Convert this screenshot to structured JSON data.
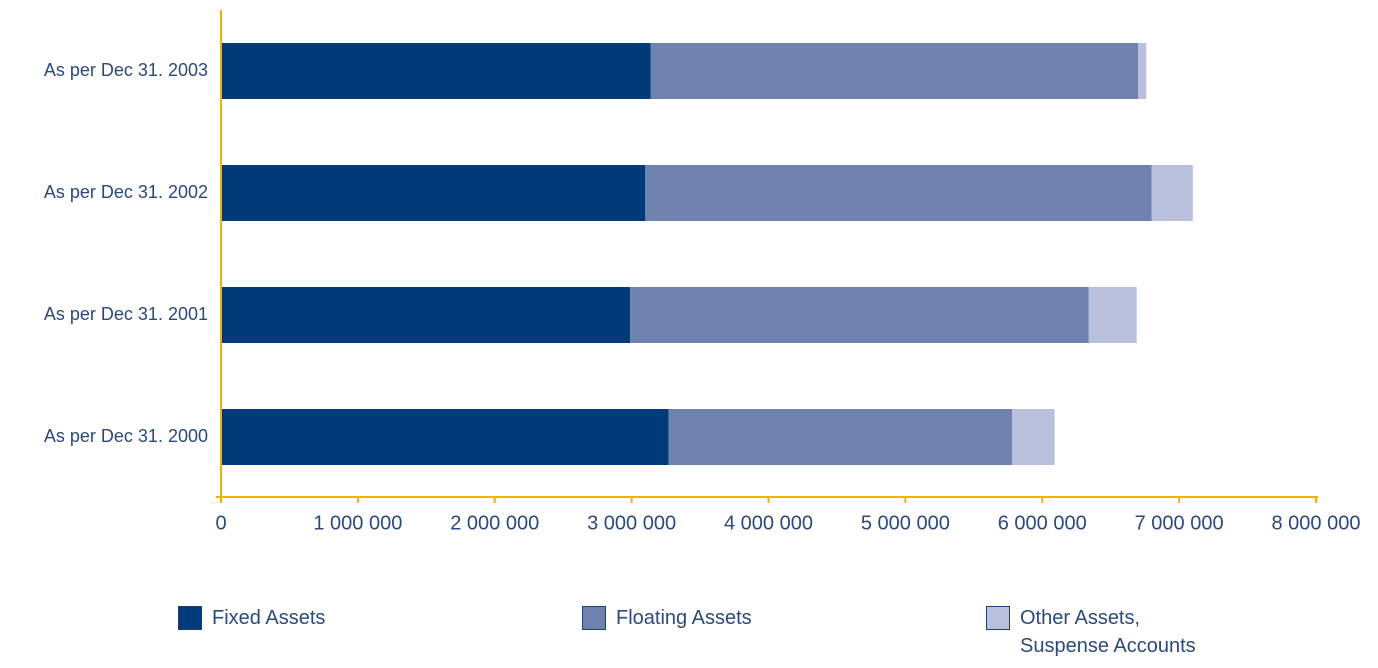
{
  "chart_data": {
    "type": "stacked-barh",
    "categories": [
      "As per Dec 31. 2003",
      "As per Dec 31. 2002",
      "As per Dec 31. 2001",
      "As per Dec 31. 2000"
    ],
    "series": [
      {
        "name": "Fixed Assets",
        "color": "#003a78",
        "values": [
          3140000,
          3100000,
          2990000,
          3270000
        ]
      },
      {
        "name": "Floating Assets",
        "color": "#6f82ad",
        "values": [
          3560000,
          3700000,
          3350000,
          2510000
        ]
      },
      {
        "name": "Other Assets,\nSuspense Accounts",
        "color": "#b8c0db",
        "values": [
          60000,
          300000,
          350000,
          310000
        ]
      }
    ],
    "xlim": [
      0,
      8000000
    ],
    "xticks": [
      0,
      {
        "value": 1000000,
        "label": "1 000 000"
      },
      {
        "value": 2000000,
        "label": "2 000 000"
      },
      {
        "value": 3000000,
        "label": "3 000 000"
      },
      {
        "value": 4000000,
        "label": "4 000 000"
      },
      {
        "value": 5000000,
        "label": "5 000 000"
      },
      {
        "value": 6000000,
        "label": "6 000 000"
      },
      {
        "value": 7000000,
        "label": "7 000 000"
      },
      {
        "value": 8000000,
        "label": "8 000 000"
      }
    ],
    "grid": false,
    "legend": "bottom"
  }
}
